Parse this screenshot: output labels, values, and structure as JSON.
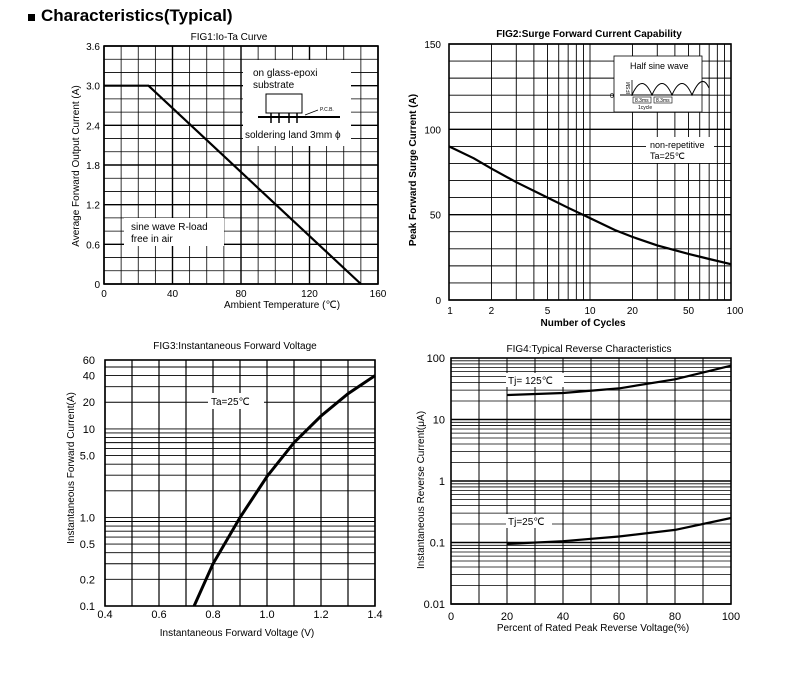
{
  "page": {
    "title": "Characteristics(Typical)"
  },
  "chart_data": [
    {
      "id": "fig1",
      "type": "line",
      "title": "FIG1:Io-Ta Curve",
      "xlabel": "Ambient Temperature (℃)",
      "ylabel": "Average Forward Output Current (A)",
      "xlim": [
        0,
        160
      ],
      "ylim": [
        0,
        3.6
      ],
      "x_ticks": [
        "0",
        "40",
        "80",
        "120",
        "160"
      ],
      "y_ticks": [
        "0",
        "0.6",
        "1.2",
        "1.8",
        "2.4",
        "3.0",
        "3.6"
      ],
      "series": [
        {
          "name": "Io",
          "x": [
            0,
            26,
            150
          ],
          "y": [
            3.0,
            3.0,
            0
          ]
        }
      ],
      "inset": {
        "line1": "on glass-epoxi",
        "line2": "substrate",
        "pcb_label": "P.C.B.",
        "caption": "soldering land 3mm ϕ"
      },
      "annotation": {
        "line1": "sine wave R-load",
        "line2": "free in air"
      }
    },
    {
      "id": "fig2",
      "type": "line",
      "title": "FIG2:Surge Forward Current Capability",
      "xlabel": "Number of Cycles",
      "ylabel": "Peak Forward Surge Current (A)",
      "x_scale": "log",
      "xlim": [
        1,
        100
      ],
      "ylim": [
        0,
        150
      ],
      "x_ticks": [
        "1",
        "2",
        "5",
        "10",
        "20",
        "50",
        "100"
      ],
      "y_ticks": [
        "0",
        "50",
        "100",
        "150"
      ],
      "series": [
        {
          "name": "IFSM",
          "x": [
            1,
            1.5,
            2,
            3,
            5,
            7,
            10,
            15,
            20,
            30,
            50,
            70,
            100
          ],
          "y": [
            90,
            83,
            77,
            69,
            60,
            54,
            48,
            41,
            37,
            32,
            27,
            24,
            21
          ]
        }
      ],
      "inset": {
        "title": "Half sine wave",
        "ifsm": "IFSM",
        "zero": "0",
        "t1": "8.3ms",
        "t2": "8.3ms",
        "cycle": "1cycle"
      },
      "annotation": {
        "line1": "non-repetitive",
        "line2": "Ta=25℃"
      }
    },
    {
      "id": "fig3",
      "type": "line",
      "title": "FIG3:Instantaneous Forward Voltage",
      "xlabel": "Instantaneous Forward Voltage (V)",
      "ylabel": "Instantaneous Forward Current(A)",
      "y_scale": "log",
      "xlim": [
        0.4,
        1.4
      ],
      "ylim": [
        0.1,
        60
      ],
      "x_ticks": [
        "0.4",
        "0.6",
        "0.8",
        "1.0",
        "1.2",
        "1.4"
      ],
      "y_ticks": [
        "0.1",
        "0.2",
        "0.5",
        "1.0",
        "5.0",
        "10",
        "20",
        "40",
        "60"
      ],
      "series": [
        {
          "name": "Ta=25℃",
          "x": [
            0.73,
            0.8,
            0.9,
            1.0,
            1.1,
            1.2,
            1.3,
            1.4
          ],
          "y": [
            0.1,
            0.3,
            1.0,
            2.9,
            7.0,
            14,
            25,
            40
          ]
        }
      ],
      "annotation": {
        "text": "Ta=25℃"
      }
    },
    {
      "id": "fig4",
      "type": "line",
      "title": "FIG4:Typical Reverse Characteristics",
      "xlabel": "Percent of Rated Peak Reverse Voltage(%)",
      "ylabel": "Instantaneous Reverse Current(μA)",
      "y_scale": "log",
      "xlim": [
        0,
        100
      ],
      "ylim": [
        0.01,
        100
      ],
      "x_ticks": [
        "0",
        "20",
        "40",
        "60",
        "80",
        "100"
      ],
      "y_ticks": [
        "0.01",
        "0.1",
        "1",
        "10",
        "100"
      ],
      "series": [
        {
          "name": "Tj=125℃",
          "x": [
            20,
            40,
            60,
            80,
            100
          ],
          "y": [
            25,
            27,
            32,
            45,
            75
          ]
        },
        {
          "name": "Tj=25℃",
          "x": [
            20,
            40,
            60,
            80,
            100
          ],
          "y": [
            0.095,
            0.105,
            0.125,
            0.16,
            0.25
          ]
        }
      ],
      "labels": {
        "s1": "Tj= 125℃",
        "s2": "Tj=25℃"
      }
    }
  ]
}
